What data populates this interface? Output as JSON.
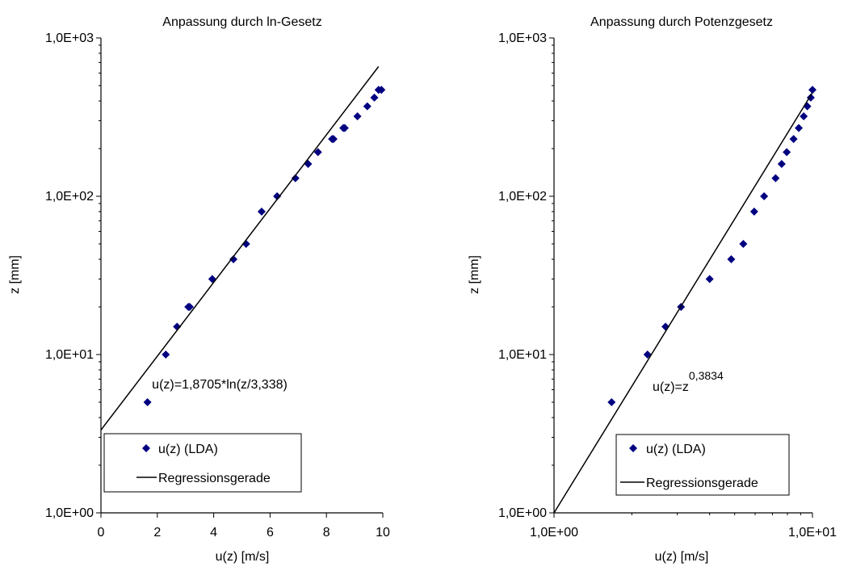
{
  "chart_data": [
    {
      "type": "scatter",
      "title": "Anpassung durch ln-Gesetz",
      "xlabel": "u(z) [m/s]",
      "ylabel": "z [mm]",
      "xscale": "linear",
      "yscale": "log",
      "xlim": [
        0,
        10
      ],
      "ylim": [
        1,
        1000
      ],
      "x_ticks": [
        {
          "value": 0,
          "label": "0"
        },
        {
          "value": 2,
          "label": "2"
        },
        {
          "value": 4,
          "label": "4"
        },
        {
          "value": 6,
          "label": "6"
        },
        {
          "value": 8,
          "label": "8"
        },
        {
          "value": 10,
          "label": "10"
        }
      ],
      "y_ticks": [
        {
          "value": 1,
          "label": "1,0E+00"
        },
        {
          "value": 10,
          "label": "1,0E+01"
        },
        {
          "value": 100,
          "label": "1,0E+02"
        },
        {
          "value": 1000,
          "label": "1,0E+03"
        }
      ],
      "grid": false,
      "legend_position": "bottom-left",
      "legend": [
        {
          "label": "u(z) (LDA)",
          "kind": "marker"
        },
        {
          "label": "Regressionsgerade",
          "kind": "line"
        }
      ],
      "annotation": {
        "text": "u(z)=1,8705*ln(z/3,338)",
        "superscript": ""
      },
      "series": [
        {
          "name": "u(z) (LDA)",
          "kind": "scatter",
          "color": "#000080",
          "points": [
            [
              1.65,
              5
            ],
            [
              2.3,
              10
            ],
            [
              2.7,
              15
            ],
            [
              3.1,
              20
            ],
            [
              3.15,
              20
            ],
            [
              3.95,
              30
            ],
            [
              4.7,
              40
            ],
            [
              5.15,
              50
            ],
            [
              5.7,
              80
            ],
            [
              6.25,
              100
            ],
            [
              6.9,
              130
            ],
            [
              7.35,
              160
            ],
            [
              7.7,
              190
            ],
            [
              8.2,
              230
            ],
            [
              8.25,
              230
            ],
            [
              8.6,
              270
            ],
            [
              8.65,
              270
            ],
            [
              9.1,
              320
            ],
            [
              9.45,
              370
            ],
            [
              9.7,
              420
            ],
            [
              9.85,
              470
            ],
            [
              9.95,
              470
            ]
          ]
        },
        {
          "name": "Regressionsgerade",
          "kind": "line",
          "color": "#000000",
          "points": [
            [
              0,
              3.338
            ],
            [
              9.85,
              660
            ]
          ]
        }
      ]
    },
    {
      "type": "scatter",
      "title": "Anpassung durch Potenzgesetz",
      "xlabel": "u(z) [m/s]",
      "ylabel": "z [mm]",
      "xscale": "log",
      "yscale": "log",
      "xlim": [
        1,
        10
      ],
      "ylim": [
        1,
        1000
      ],
      "x_ticks": [
        {
          "value": 1,
          "label": "1,0E+00"
        },
        {
          "value": 10,
          "label": "1,0E+01"
        }
      ],
      "y_ticks": [
        {
          "value": 1,
          "label": "1,0E+00"
        },
        {
          "value": 10,
          "label": "1,0E+01"
        },
        {
          "value": 100,
          "label": "1,0E+02"
        },
        {
          "value": 1000,
          "label": "1,0E+03"
        }
      ],
      "grid": false,
      "legend_position": "bottom-left",
      "legend": [
        {
          "label": "u(z) (LDA)",
          "kind": "marker"
        },
        {
          "label": "Regressionsgerade",
          "kind": "line"
        }
      ],
      "annotation": {
        "text": "u(z)=z",
        "superscript": "0,3834"
      },
      "series": [
        {
          "name": "u(z) (LDA)",
          "kind": "scatter",
          "color": "#000080",
          "points": [
            [
              1.67,
              5
            ],
            [
              2.3,
              10
            ],
            [
              2.7,
              15
            ],
            [
              3.1,
              20
            ],
            [
              4.0,
              30
            ],
            [
              4.85,
              40
            ],
            [
              5.4,
              50
            ],
            [
              5.95,
              80
            ],
            [
              6.5,
              100
            ],
            [
              7.2,
              130
            ],
            [
              7.6,
              160
            ],
            [
              7.95,
              190
            ],
            [
              8.45,
              230
            ],
            [
              8.85,
              270
            ],
            [
              9.25,
              320
            ],
            [
              9.55,
              370
            ],
            [
              9.85,
              420
            ],
            [
              10.0,
              470
            ]
          ]
        },
        {
          "name": "Regressionsgerade",
          "kind": "line",
          "color": "#000000",
          "points": [
            [
              1,
              1
            ],
            [
              10,
              452
            ]
          ]
        }
      ]
    }
  ]
}
